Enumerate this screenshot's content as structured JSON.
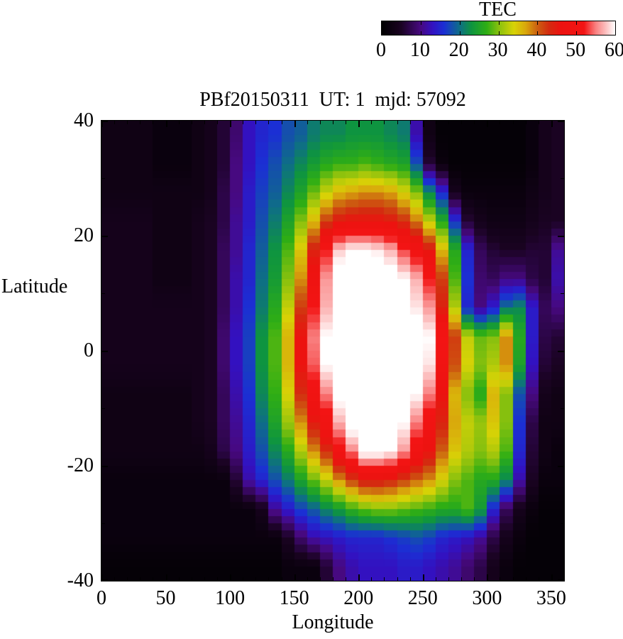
{
  "title": "PBf20150311  UT: 1  mjd: 57092",
  "colorbar": {
    "label": "TEC",
    "min": 0,
    "max": 60,
    "ticks": [
      0,
      10,
      20,
      30,
      40,
      50,
      60
    ],
    "stops": [
      {
        "v": 0,
        "c": "#000000"
      },
      {
        "v": 5,
        "c": "#1a0322"
      },
      {
        "v": 10,
        "c": "#470980"
      },
      {
        "v": 13,
        "c": "#3311c0"
      },
      {
        "v": 16,
        "c": "#1b2fd4"
      },
      {
        "v": 20,
        "c": "#0e6e86"
      },
      {
        "v": 23,
        "c": "#0e9440"
      },
      {
        "v": 27,
        "c": "#2fae14"
      },
      {
        "v": 30,
        "c": "#86c00e"
      },
      {
        "v": 34,
        "c": "#d8d306"
      },
      {
        "v": 37,
        "c": "#d9a70c"
      },
      {
        "v": 40,
        "c": "#cc5f10"
      },
      {
        "v": 43,
        "c": "#d42b10"
      },
      {
        "v": 46,
        "c": "#ec1310"
      },
      {
        "v": 52,
        "c": "#f31414"
      },
      {
        "v": 55,
        "c": "#f98080"
      },
      {
        "v": 58,
        "c": "#fdcaca"
      },
      {
        "v": 60,
        "c": "#ffffff"
      }
    ]
  },
  "axes": {
    "x": {
      "label": "Longitude",
      "min": 0,
      "max": 360,
      "major_ticks": [
        0,
        50,
        100,
        150,
        200,
        250,
        300,
        350
      ],
      "minor_step": 10
    },
    "y": {
      "label": "Latitude",
      "min": -40,
      "max": 40,
      "major_ticks": [
        40,
        20,
        0,
        -20,
        -40
      ],
      "minor_ticks": [
        30,
        10,
        -10,
        -30
      ]
    }
  },
  "chart_data": {
    "type": "heatmap",
    "title": "PBf20150311  UT: 1  mjd: 57092",
    "xlabel": "Longitude",
    "ylabel": "Latitude",
    "zlabel": "TEC",
    "xlim": [
      0,
      360
    ],
    "ylim": [
      -40,
      40
    ],
    "zlim": [
      0,
      60
    ],
    "lon_centers": [
      5,
      15,
      25,
      35,
      45,
      55,
      65,
      75,
      85,
      95,
      105,
      115,
      125,
      135,
      145,
      155,
      165,
      175,
      185,
      195,
      205,
      215,
      225,
      235,
      245,
      255,
      265,
      275,
      285,
      295,
      305,
      315,
      325,
      335,
      345,
      355
    ],
    "lat_centers": [
      37.5,
      32.5,
      27.5,
      22.5,
      17.5,
      12.5,
      7.5,
      2.5,
      -2.5,
      -7.5,
      -12.5,
      -17.5,
      -22.5,
      -27.5,
      -32.5,
      -37.5
    ],
    "values": [
      [
        3,
        3,
        3,
        3,
        2,
        2,
        2,
        3,
        4,
        6,
        9,
        13,
        15,
        16,
        18,
        19,
        21,
        22,
        22,
        23,
        23,
        23,
        22,
        21,
        12,
        3,
        1,
        1,
        1,
        1,
        1,
        1,
        1,
        2,
        4,
        5
      ],
      [
        3,
        3,
        3,
        3,
        2,
        2,
        2,
        3,
        4,
        6,
        10,
        13,
        16,
        18,
        20,
        22,
        24,
        26,
        27,
        27,
        28,
        27,
        26,
        25,
        18,
        6,
        2,
        1,
        1,
        1,
        1,
        1,
        1,
        2,
        4,
        5
      ],
      [
        3,
        3,
        3,
        3,
        3,
        3,
        3,
        3,
        4,
        7,
        10,
        14,
        17,
        19,
        22,
        25,
        29,
        33,
        36,
        37,
        38,
        38,
        37,
        34,
        30,
        22,
        15,
        4,
        2,
        2,
        2,
        2,
        2,
        3,
        4,
        5
      ],
      [
        4,
        4,
        4,
        4,
        3,
        3,
        3,
        4,
        5,
        7,
        11,
        14,
        18,
        21,
        25,
        30,
        36,
        42,
        45,
        46,
        46,
        46,
        45,
        43,
        39,
        33,
        26,
        16,
        6,
        4,
        3,
        3,
        3,
        4,
        5,
        5
      ],
      [
        4,
        4,
        4,
        4,
        3,
        3,
        3,
        4,
        5,
        8,
        11,
        15,
        19,
        23,
        28,
        35,
        44,
        52,
        58,
        60,
        60,
        59,
        57,
        53,
        50,
        45,
        36,
        26,
        15,
        8,
        6,
        5,
        5,
        6,
        6,
        11
      ],
      [
        4,
        4,
        4,
        4,
        3,
        3,
        3,
        4,
        5,
        8,
        12,
        15,
        20,
        24,
        30,
        38,
        48,
        56,
        62,
        63,
        63,
        63,
        62,
        60,
        57,
        52,
        42,
        28,
        16,
        9,
        8,
        10,
        10,
        7,
        6,
        12
      ],
      [
        4,
        4,
        4,
        4,
        4,
        4,
        4,
        4,
        5,
        8,
        12,
        16,
        21,
        26,
        33,
        42,
        52,
        57,
        63,
        64,
        64,
        64,
        63,
        61,
        59,
        56,
        44,
        32,
        15,
        10,
        14,
        20,
        22,
        14,
        8,
        10
      ],
      [
        4,
        4,
        4,
        4,
        4,
        4,
        4,
        4,
        5,
        9,
        13,
        17,
        23,
        28,
        36,
        46,
        55,
        60,
        64,
        64,
        64,
        64,
        64,
        63,
        62,
        60,
        52,
        42,
        33,
        29,
        30,
        38,
        26,
        14,
        7,
        6
      ],
      [
        4,
        4,
        4,
        4,
        4,
        4,
        4,
        4,
        5,
        9,
        13,
        17,
        23,
        28,
        36,
        46,
        54,
        60,
        64,
        64,
        64,
        64,
        64,
        63,
        62,
        59,
        50,
        41,
        34,
        30,
        32,
        38,
        25,
        13,
        6,
        5
      ],
      [
        3,
        3,
        3,
        3,
        3,
        3,
        3,
        4,
        5,
        8,
        12,
        16,
        22,
        27,
        34,
        43,
        50,
        55,
        61,
        63,
        64,
        64,
        63,
        62,
        60,
        55,
        46,
        36,
        30,
        26,
        36,
        30,
        18,
        10,
        4,
        3
      ],
      [
        3,
        3,
        3,
        3,
        3,
        3,
        3,
        4,
        5,
        8,
        11,
        15,
        20,
        25,
        31,
        38,
        45,
        50,
        57,
        62,
        63,
        63,
        62,
        60,
        55,
        50,
        44,
        37,
        33,
        31,
        35,
        30,
        16,
        7,
        3,
        3
      ],
      [
        3,
        3,
        3,
        3,
        3,
        3,
        3,
        3,
        4,
        7,
        10,
        14,
        18,
        22,
        26,
        32,
        38,
        43,
        50,
        55,
        61,
        61,
        60,
        56,
        50,
        46,
        40,
        35,
        32,
        30,
        32,
        28,
        15,
        6,
        3,
        2
      ],
      [
        2,
        2,
        2,
        2,
        2,
        2,
        2,
        2,
        2,
        2,
        6,
        12,
        15,
        18,
        21,
        25,
        29,
        33,
        38,
        42,
        45,
        45,
        44,
        42,
        40,
        38,
        34,
        30,
        28,
        26,
        26,
        22,
        12,
        5,
        2,
        2
      ],
      [
        2,
        2,
        2,
        2,
        2,
        2,
        2,
        2,
        2,
        2,
        2,
        2,
        4,
        11,
        14,
        17,
        19,
        22,
        24,
        27,
        29,
        30,
        30,
        29,
        28,
        27,
        26,
        26,
        28,
        24,
        15,
        8,
        4,
        2,
        1,
        1
      ],
      [
        2,
        2,
        2,
        2,
        2,
        2,
        2,
        2,
        2,
        2,
        2,
        2,
        2,
        2,
        5,
        9,
        12,
        13,
        14,
        15,
        15,
        15,
        16,
        17,
        18,
        17,
        15,
        14,
        13,
        11,
        7,
        4,
        2,
        1,
        1,
        1
      ],
      [
        1,
        1,
        1,
        1,
        1,
        1,
        1,
        1,
        1,
        1,
        1,
        1,
        1,
        1,
        2,
        2,
        2,
        6,
        10,
        12,
        13,
        13,
        13,
        14,
        14,
        13,
        12,
        11,
        9,
        7,
        4,
        2,
        1,
        1,
        1,
        1
      ]
    ]
  }
}
